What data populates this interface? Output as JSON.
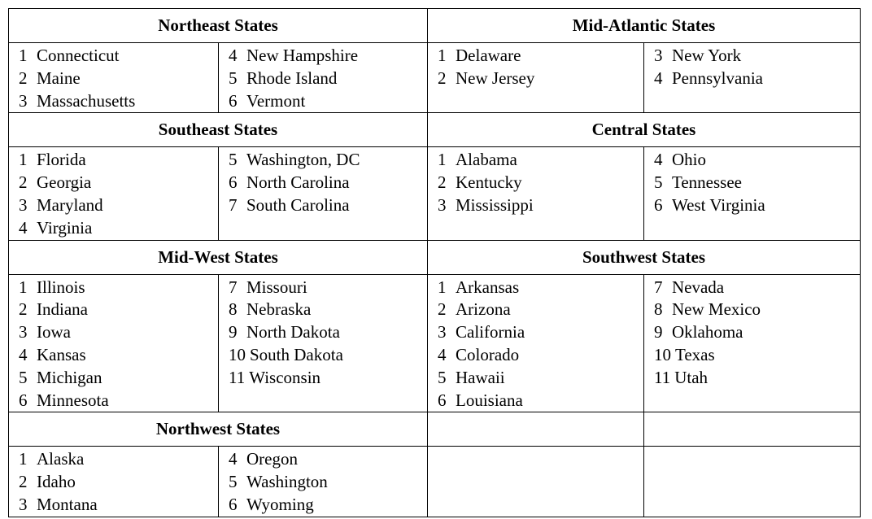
{
  "regions": {
    "northeast": {
      "title": "Northeast States",
      "left": [
        {
          "num": "1",
          "name": "Connecticut"
        },
        {
          "num": "2",
          "name": "Maine"
        },
        {
          "num": "3",
          "name": "Massachusetts"
        }
      ],
      "right": [
        {
          "num": "4",
          "name": "New Hampshire"
        },
        {
          "num": "5",
          "name": "Rhode Island"
        },
        {
          "num": "6",
          "name": "Vermont"
        }
      ]
    },
    "mid_atlantic": {
      "title": "Mid-Atlantic States",
      "left": [
        {
          "num": "1",
          "name": "Delaware"
        },
        {
          "num": "2",
          "name": "New Jersey"
        }
      ],
      "right": [
        {
          "num": "3",
          "name": "New York"
        },
        {
          "num": "4",
          "name": "Pennsylvania"
        }
      ]
    },
    "southeast": {
      "title": "Southeast States",
      "left": [
        {
          "num": "1",
          "name": "Florida"
        },
        {
          "num": "2",
          "name": "Georgia"
        },
        {
          "num": "3",
          "name": "Maryland"
        },
        {
          "num": "4",
          "name": "Virginia"
        }
      ],
      "right": [
        {
          "num": "5",
          "name": "Washington, DC"
        },
        {
          "num": "6",
          "name": "North Carolina"
        },
        {
          "num": "7",
          "name": "South Carolina"
        }
      ]
    },
    "central": {
      "title": "Central States",
      "left": [
        {
          "num": "1",
          "name": "Alabama"
        },
        {
          "num": "2",
          "name": "Kentucky"
        },
        {
          "num": "3",
          "name": "Mississippi"
        }
      ],
      "right": [
        {
          "num": "4",
          "name": "Ohio"
        },
        {
          "num": "5",
          "name": "Tennessee"
        },
        {
          "num": "6",
          "name": "West Virginia"
        }
      ]
    },
    "midwest": {
      "title": "Mid-West States",
      "left": [
        {
          "num": "1",
          "name": "Illinois"
        },
        {
          "num": "2",
          "name": "Indiana"
        },
        {
          "num": "3",
          "name": "Iowa"
        },
        {
          "num": "4",
          "name": "Kansas"
        },
        {
          "num": "5",
          "name": "Michigan"
        },
        {
          "num": "6",
          "name": "Minnesota"
        }
      ],
      "right": [
        {
          "num": "7",
          "name": "Missouri"
        },
        {
          "num": "8",
          "name": "Nebraska"
        },
        {
          "num": "9",
          "name": "North Dakota"
        },
        {
          "num": "10",
          "name": "South Dakota"
        },
        {
          "num": "11",
          "name": "Wisconsin"
        }
      ]
    },
    "southwest": {
      "title": "Southwest States",
      "left": [
        {
          "num": "1",
          "name": "Arkansas"
        },
        {
          "num": "2",
          "name": "Arizona"
        },
        {
          "num": "3",
          "name": "California"
        },
        {
          "num": "4",
          "name": "Colorado"
        },
        {
          "num": "5",
          "name": "Hawaii"
        },
        {
          "num": "6",
          "name": "Louisiana"
        }
      ],
      "right": [
        {
          "num": "7",
          "name": "Nevada"
        },
        {
          "num": "8",
          "name": "New Mexico"
        },
        {
          "num": "9",
          "name": "Oklahoma"
        },
        {
          "num": "10",
          "name": "Texas"
        },
        {
          "num": "11",
          "name": "Utah"
        }
      ]
    },
    "northwest": {
      "title": "Northwest States",
      "left": [
        {
          "num": "1",
          "name": "Alaska"
        },
        {
          "num": "2",
          "name": "Idaho"
        },
        {
          "num": "3",
          "name": "Montana"
        }
      ],
      "right": [
        {
          "num": "4",
          "name": "Oregon"
        },
        {
          "num": "5",
          "name": "Washington"
        },
        {
          "num": "6",
          "name": "Wyoming"
        }
      ]
    }
  }
}
